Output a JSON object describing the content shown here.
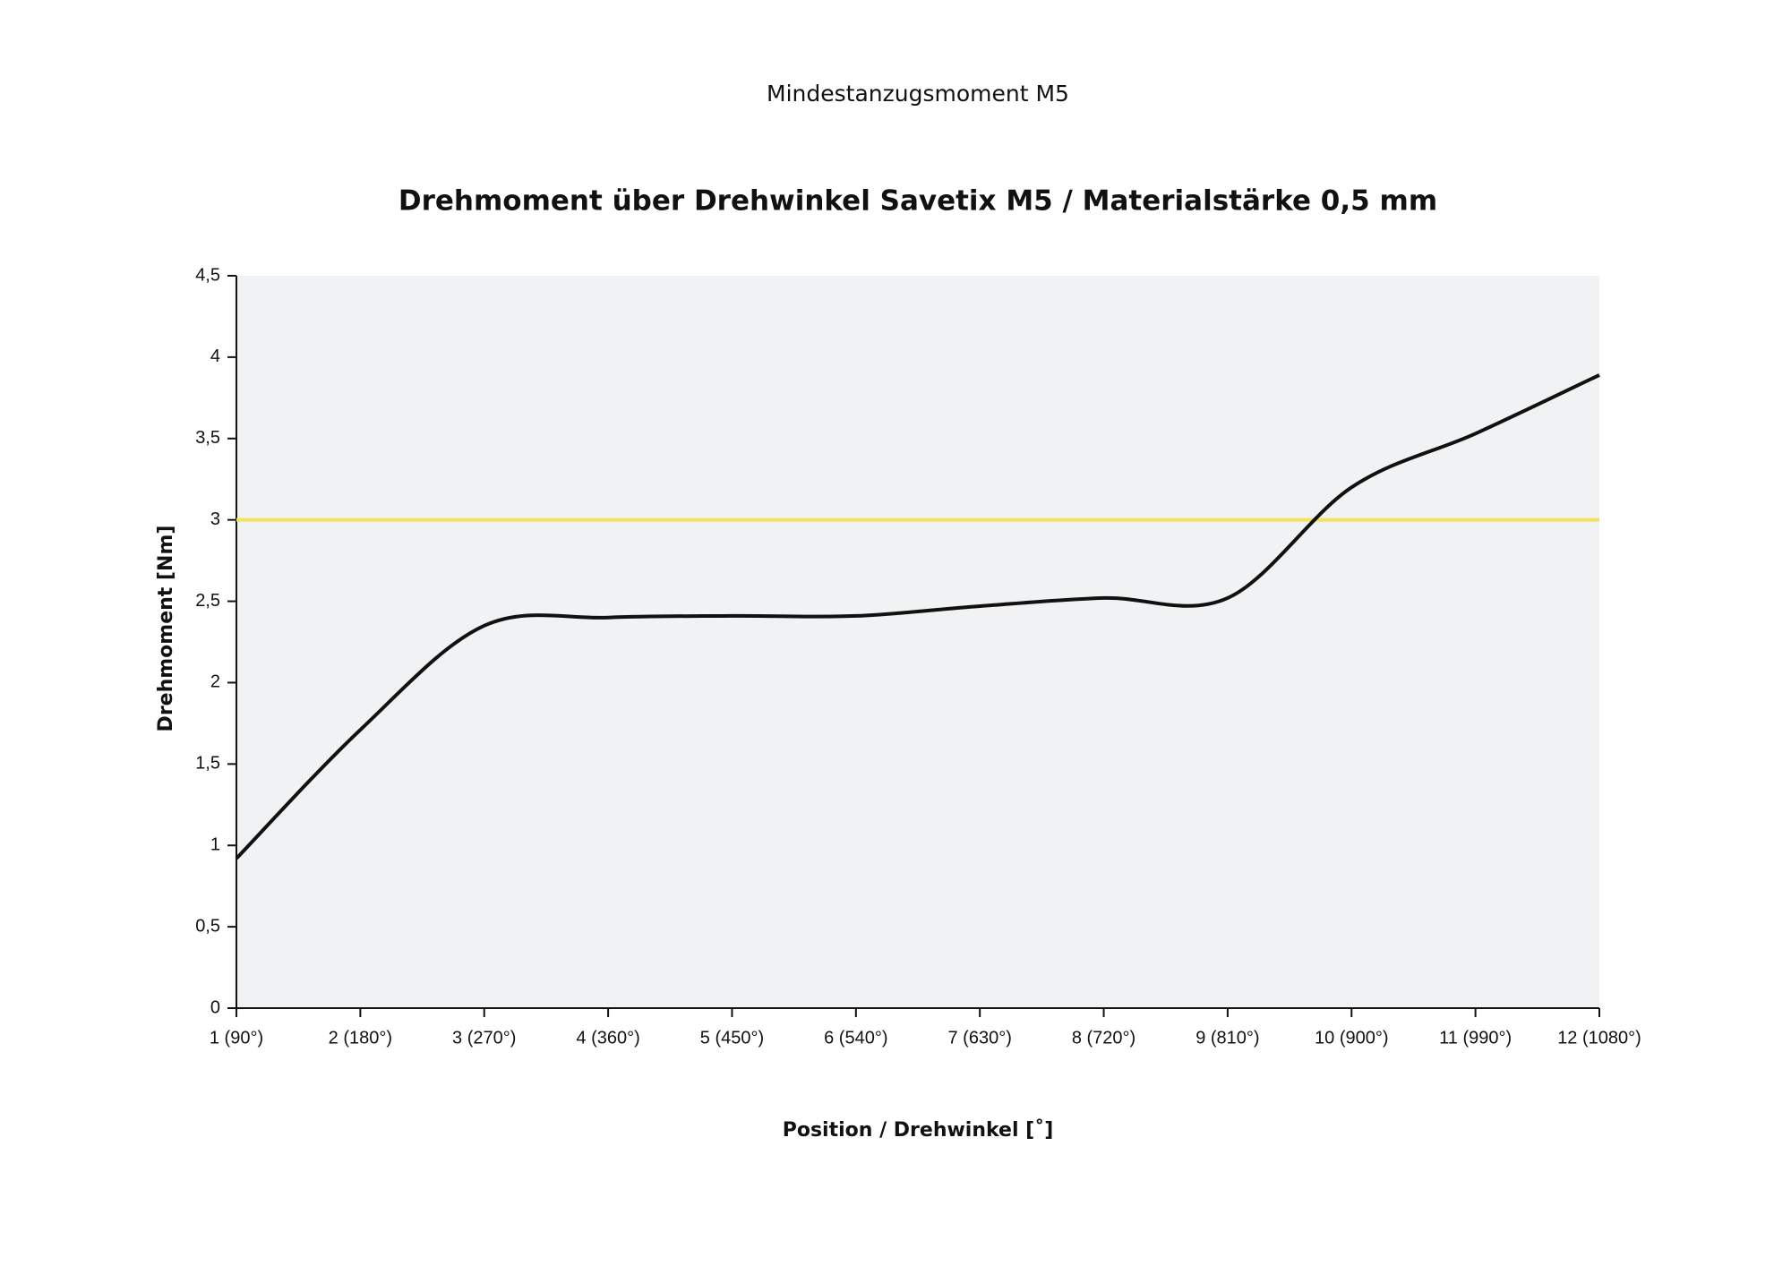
{
  "chart_data": {
    "type": "line",
    "supertitle": "Mindestanzugsmoment M5",
    "title": "Drehmoment über Drehwinkel Savetix M5 / Materialstärke 0,5 mm",
    "x_label": "Position / Drehwinkel [˚]",
    "y_label": "Drehmoment [Nm]",
    "categories": [
      "1 (90°)",
      "2 (180°)",
      "3 (270°)",
      "4 (360°)",
      "5 (450°)",
      "6 (540°)",
      "7 (630°)",
      "8 (720°)",
      "9 (810°)",
      "10 (900°)",
      "11 (990°)",
      "12 (1080°)"
    ],
    "series": [
      {
        "name": "Drehmoment",
        "color": "#111111",
        "values": [
          0.92,
          1.71,
          2.35,
          2.4,
          2.41,
          2.41,
          2.47,
          2.52,
          2.52,
          3.2,
          3.53,
          3.89
        ]
      }
    ],
    "reference_line": {
      "value": 3,
      "color": "#f2e35a"
    },
    "ylim": [
      0,
      4.5
    ],
    "yticks": [
      0,
      {
        "value": 0.5,
        "label": "0,5"
      },
      1,
      {
        "value": 1.5,
        "label": "1,5"
      },
      2,
      {
        "value": 2.5,
        "label": "2,5"
      },
      3,
      {
        "value": 3.5,
        "label": "3,5"
      },
      4,
      {
        "value": 4.5,
        "label": "4,5"
      }
    ],
    "plot_background": "#f1f2f3"
  }
}
